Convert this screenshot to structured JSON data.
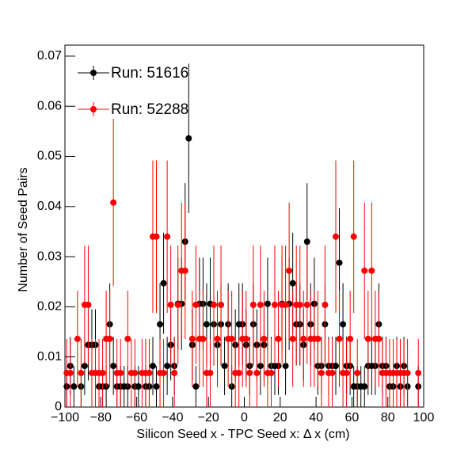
{
  "chart_data": {
    "type": "scatter",
    "xlabel": "Silicon Seed x - TPC Seed x:    Δ x (cm)",
    "ylabel": "Number of Seed Pairs",
    "legend": "top-left",
    "xlim": [
      -100,
      100
    ],
    "ylim": [
      0,
      0.0722
    ],
    "xticks": [
      {
        "value": -100,
        "label": "−100"
      },
      {
        "value": -80,
        "label": "−80"
      },
      {
        "value": -60,
        "label": "−60"
      },
      {
        "value": -40,
        "label": "−40"
      },
      {
        "value": -20,
        "label": "−20"
      },
      0,
      20,
      40,
      60,
      80,
      100
    ],
    "yticks": [
      0,
      0.01,
      0.02,
      0.03,
      0.04,
      0.05,
      0.06,
      0.07
    ],
    "x": [
      -99,
      -97,
      -95,
      -93,
      -91,
      -89,
      -87,
      -85,
      -83,
      -81,
      -79,
      -77,
      -75,
      -73,
      -71,
      -69,
      -67,
      -65,
      -63,
      -61,
      -59,
      -57,
      -55,
      -53,
      -51,
      -49,
      -47,
      -45,
      -43,
      -41,
      -39,
      -37,
      -35,
      -33,
      -31,
      -29,
      -27,
      -25,
      -23,
      -21,
      -19,
      -17,
      -15,
      -13,
      -11,
      -9,
      -7,
      -5,
      -3,
      -1,
      1,
      3,
      5,
      7,
      9,
      11,
      13,
      15,
      17,
      19,
      21,
      23,
      25,
      27,
      29,
      31,
      33,
      35,
      37,
      39,
      41,
      43,
      45,
      47,
      49,
      51,
      53,
      55,
      57,
      59,
      61,
      63,
      65,
      67,
      69,
      71,
      73,
      75,
      77,
      79,
      81,
      83,
      85,
      87,
      89,
      91,
      93,
      95,
      97,
      99
    ],
    "series": [
      {
        "name": "Run: 51616",
        "color": "#000000",
        "values": [
          0.0041,
          0.0082,
          0.0041,
          null,
          0.0041,
          0.0082,
          0.0124,
          0.0124,
          0.0124,
          0.0041,
          0.0041,
          0.0041,
          0.0165,
          0.0082,
          0.0041,
          0.0041,
          0.0041,
          0.0041,
          null,
          0.0041,
          0.0041,
          null,
          0.0041,
          0.0041,
          0.0082,
          0.0041,
          0.0165,
          0.0247,
          0.0082,
          0.0124,
          0.0082,
          0.0206,
          0.0206,
          0.033,
          0.0536,
          0.0124,
          0.0041,
          0.0206,
          0.0206,
          0.0165,
          0.0206,
          0.0165,
          0.0124,
          0.0165,
          0.0082,
          0.0165,
          0.0041,
          0.0124,
          0.0165,
          0.0165,
          0.0124,
          0.0082,
          0.0165,
          0.0124,
          0.0082,
          0.0124,
          0.0206,
          0.0082,
          0.0082,
          0.0082,
          0.0206,
          0.0082,
          0.0206,
          0.0247,
          0.0165,
          0.0165,
          0.0124,
          0.033,
          0.0165,
          0.0206,
          0.0082,
          0.0082,
          0.0165,
          0.0082,
          0.0082,
          0.0082,
          0.0288,
          0.0165,
          0.0082,
          0.0082,
          0.0041,
          0.0041,
          0.0041,
          0.0041,
          0.0082,
          0.0082,
          0.0082,
          0.0165,
          0.0082,
          0.0082,
          0.0041,
          0.0041,
          0.0082,
          0.0041,
          0.0082,
          0.0041,
          null,
          null,
          0.0041,
          null
        ],
        "errors": [
          0.0041,
          0.0058,
          0.0041,
          null,
          0.0041,
          0.0058,
          0.0071,
          0.0071,
          0.0071,
          0.0041,
          0.0041,
          0.0041,
          0.0082,
          0.0058,
          0.0041,
          0.0041,
          0.0041,
          0.0041,
          null,
          0.0041,
          0.0041,
          null,
          0.0041,
          0.0041,
          0.0058,
          0.0041,
          0.0082,
          0.0101,
          0.0058,
          0.0071,
          0.0058,
          0.0092,
          0.0092,
          0.0117,
          0.0149,
          0.0071,
          0.0041,
          0.0092,
          0.0092,
          0.0082,
          0.0092,
          0.0082,
          0.0071,
          0.0082,
          0.0058,
          0.0082,
          0.0041,
          0.0071,
          0.0082,
          0.0082,
          0.0071,
          0.0058,
          0.0082,
          0.0071,
          0.0058,
          0.0071,
          0.0092,
          0.0058,
          0.0058,
          0.0058,
          0.0092,
          0.0058,
          0.0092,
          0.0101,
          0.0082,
          0.0082,
          0.0071,
          0.0117,
          0.0082,
          0.0092,
          0.0058,
          0.0058,
          0.0082,
          0.0058,
          0.0058,
          0.0058,
          0.0109,
          0.0082,
          0.0058,
          0.0058,
          0.0041,
          0.0041,
          0.0041,
          0.0041,
          0.0058,
          0.0058,
          0.0058,
          0.0082,
          0.0058,
          0.0058,
          0.0041,
          0.0041,
          0.0058,
          0.0041,
          0.0058,
          0.0041,
          null,
          null,
          0.0041,
          null
        ]
      },
      {
        "name": "Run: 52288",
        "color": "#ff0000",
        "values": [
          0.0068,
          0.0068,
          null,
          0.0136,
          0.0068,
          0.0204,
          0.0204,
          0.0068,
          0.0068,
          0.0068,
          0.0068,
          0.0136,
          0.0136,
          0.0408,
          0.0068,
          0.0068,
          null,
          0.0136,
          0.0068,
          0.0068,
          null,
          0.0068,
          0.0068,
          0.0068,
          0.034,
          0.034,
          0.0068,
          0.0068,
          0.034,
          0.0204,
          0.0068,
          0.0204,
          0.0272,
          0.0272,
          null,
          0.0136,
          0.0204,
          0.0136,
          0.0136,
          0.0068,
          0.0068,
          0.0204,
          0.0136,
          0.0204,
          null,
          0.0136,
          0.0136,
          0.0068,
          0.0068,
          0.0136,
          0.0136,
          0.0068,
          0.0204,
          0.0068,
          0.0204,
          0.0136,
          0.0068,
          0.0068,
          0.0204,
          0.0136,
          0.0204,
          0.0204,
          0.0272,
          0.0136,
          0.0204,
          0.0204,
          0.0136,
          0.0204,
          0.0136,
          0.0136,
          0.0136,
          0.0068,
          0.0204,
          0.0068,
          0.0068,
          0.034,
          0.0136,
          0.0068,
          0.0068,
          0.0136,
          0.034,
          0.0068,
          null,
          0.0272,
          0.0136,
          0.0272,
          0.0136,
          0.0136,
          0.0068,
          0.0068,
          0.0068,
          0.0068,
          0.0068,
          0.0068,
          0.0068,
          0.0068,
          null,
          null,
          0.0068,
          null
        ],
        "errors": [
          0.0068,
          0.0068,
          null,
          0.0096,
          0.0068,
          0.0118,
          0.0118,
          0.0068,
          0.0068,
          0.0068,
          0.0068,
          0.0096,
          0.0096,
          0.0167,
          0.0068,
          0.0068,
          null,
          0.0096,
          0.0068,
          0.0068,
          null,
          0.0068,
          0.0068,
          0.0068,
          0.0152,
          0.0152,
          0.0068,
          0.0068,
          0.0152,
          0.0118,
          0.0068,
          0.0118,
          0.0136,
          0.0136,
          null,
          0.0096,
          0.0118,
          0.0096,
          0.0096,
          0.0068,
          0.0068,
          0.0118,
          0.0096,
          0.0118,
          null,
          0.0096,
          0.0096,
          0.0068,
          0.0068,
          0.0096,
          0.0096,
          0.0068,
          0.0118,
          0.0068,
          0.0118,
          0.0096,
          0.0068,
          0.0068,
          0.0118,
          0.0096,
          0.0118,
          0.0118,
          0.0136,
          0.0096,
          0.0118,
          0.0118,
          0.0096,
          0.0118,
          0.0096,
          0.0096,
          0.0096,
          0.0068,
          0.0118,
          0.0068,
          0.0068,
          0.0152,
          0.0096,
          0.0068,
          0.0068,
          0.0096,
          0.0152,
          0.0068,
          null,
          0.0136,
          0.0096,
          0.0136,
          0.0096,
          0.0096,
          0.0068,
          0.0068,
          0.0068,
          0.0068,
          0.0068,
          0.0068,
          0.0068,
          0.0068,
          null,
          null,
          0.0068,
          null
        ]
      }
    ]
  }
}
